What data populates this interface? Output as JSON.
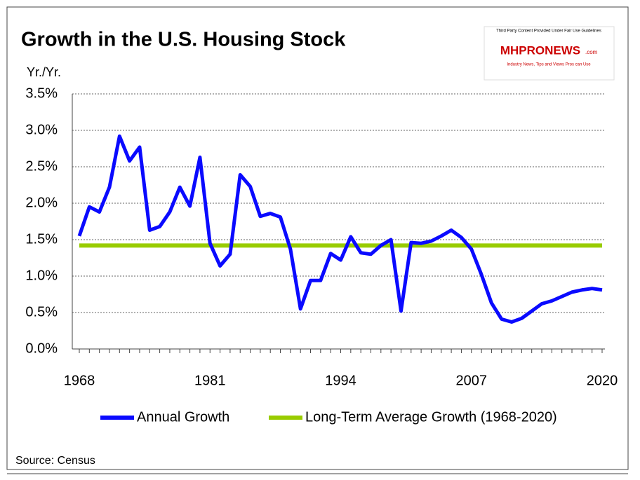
{
  "chart_data": {
    "type": "line",
    "title": "Growth in the U.S. Housing Stock",
    "y_axis_label": "Yr./Yr.",
    "source": "Source:  Census",
    "logo": {
      "top": "Third Party Content Provided Under Fair Use Guidelines",
      "name": "MHPRONEWS",
      "suffix": ".com",
      "tagline": "Industry News, Tips and Views Pros can Use"
    },
    "x": [
      1968,
      1969,
      1970,
      1971,
      1972,
      1973,
      1974,
      1975,
      1976,
      1977,
      1978,
      1979,
      1980,
      1981,
      1982,
      1983,
      1984,
      1985,
      1986,
      1987,
      1988,
      1989,
      1990,
      1991,
      1992,
      1993,
      1994,
      1995,
      1996,
      1997,
      1998,
      1999,
      2000,
      2001,
      2002,
      2003,
      2004,
      2005,
      2006,
      2007,
      2008,
      2009,
      2010,
      2011,
      2012,
      2013,
      2014,
      2015,
      2016,
      2017,
      2018,
      2019,
      2020
    ],
    "series": [
      {
        "name": "Annual Growth",
        "color": "#0a0aff",
        "values": [
          1.55,
          1.95,
          1.88,
          2.22,
          2.92,
          2.58,
          2.77,
          1.63,
          1.68,
          1.88,
          2.22,
          1.96,
          2.63,
          1.45,
          1.14,
          1.3,
          2.39,
          2.23,
          1.82,
          1.86,
          1.81,
          1.37,
          0.55,
          0.94,
          0.94,
          1.31,
          1.22,
          1.54,
          1.32,
          1.3,
          1.42,
          1.5,
          0.52,
          1.46,
          1.45,
          1.48,
          1.55,
          1.63,
          1.53,
          1.37,
          1.02,
          0.63,
          0.41,
          0.37,
          0.42,
          0.52,
          0.62,
          0.66,
          0.72,
          0.78,
          0.81,
          0.83,
          0.81
        ]
      },
      {
        "name": "Long-Term Average Growth (1968-2020)",
        "color": "#99cc00",
        "values": [
          1.42,
          1.42,
          1.42,
          1.42,
          1.42,
          1.42,
          1.42,
          1.42,
          1.42,
          1.42,
          1.42,
          1.42,
          1.42,
          1.42,
          1.42,
          1.42,
          1.42,
          1.42,
          1.42,
          1.42,
          1.42,
          1.42,
          1.42,
          1.42,
          1.42,
          1.42,
          1.42,
          1.42,
          1.42,
          1.42,
          1.42,
          1.42,
          1.42,
          1.42,
          1.42,
          1.42,
          1.42,
          1.42,
          1.42,
          1.42,
          1.42,
          1.42,
          1.42,
          1.42,
          1.42,
          1.42,
          1.42,
          1.42,
          1.42,
          1.42,
          1.42,
          1.42,
          1.42
        ]
      }
    ],
    "xlim": [
      1968,
      2020
    ],
    "xticks": [
      1968,
      1981,
      1994,
      2007,
      2020
    ],
    "ylim": [
      0,
      3.5
    ],
    "yticks": [
      {
        "value": 0,
        "label": "0.0%"
      },
      {
        "value": 0.5,
        "label": "0.5%"
      },
      {
        "value": 1,
        "label": "1.0%"
      },
      {
        "value": 1.5,
        "label": "1.5%"
      },
      {
        "value": 2,
        "label": "2.0%"
      },
      {
        "value": 2.5,
        "label": "2.5%"
      },
      {
        "value": 3,
        "label": "3.0%"
      },
      {
        "value": 3.5,
        "label": "3.5%"
      }
    ],
    "grid": true,
    "legend": "bottom"
  }
}
